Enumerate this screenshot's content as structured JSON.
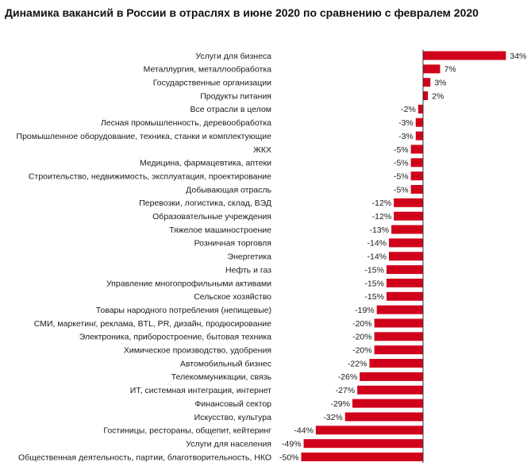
{
  "chart_data": {
    "type": "bar",
    "orientation": "horizontal",
    "title": "Динамика вакансий в России в отраслях в июне 2020 по сравнению с февралем 2020",
    "xlabel": "",
    "ylabel": "",
    "xlim": [
      -50,
      34
    ],
    "grid": false,
    "legend": "none",
    "value_suffix": "%",
    "bar_color": "#d0021b",
    "categories": [
      "Услуги для бизнеса",
      "Металлургия, металлообработка",
      "Государственные организации",
      "Продукты питания",
      "Все отрасли в целом",
      "Лесная промышленность, деревообработка",
      "Промышленное оборудование, техника, станки и комплектующие",
      "ЖКХ",
      "Медицина, фармацевтика, аптеки",
      "Строительство, недвижимость, эксплуатация, проектирование",
      "Добывающая отрасль",
      "Перевозки, логистика, склад, ВЭД",
      "Образовательные учреждения",
      "Тяжелое машиностроение",
      "Розничная торговля",
      "Энергетика",
      "Нефть и газ",
      "Управление многопрофильными активами",
      "Сельское хозяйство",
      "Товары народного потребления (непищевые)",
      "СМИ, маркетинг, реклама, BTL, PR, дизайн, продюсирование",
      "Электроника, приборостроение, бытовая техника",
      "Химическое производство, удобрения",
      "Автомобильный бизнес",
      "Телекоммуникации, связь",
      "ИТ, системная интеграция, интернет",
      "Финансовый сектор",
      "Искусство, культура",
      "Гостиницы, рестораны, общепит, кейтеринг",
      "Услуги для населения",
      "Общественная деятельность, партии, благотворительность, НКО"
    ],
    "values": [
      34,
      7,
      3,
      2,
      -2,
      -3,
      -3,
      -5,
      -5,
      -5,
      -5,
      -12,
      -12,
      -13,
      -14,
      -14,
      -15,
      -15,
      -15,
      -19,
      -20,
      -20,
      -20,
      -22,
      -26,
      -27,
      -29,
      -32,
      -44,
      -49,
      -50
    ],
    "value_labels": [
      "34%",
      "7%",
      "3%",
      "2%",
      "-2%",
      "-3%",
      "-3%",
      "-5%",
      "-5%",
      "-5%",
      "-5%",
      "-12%",
      "-12%",
      "-13%",
      "-14%",
      "-14%",
      "-15%",
      "-15%",
      "-15%",
      "-19%",
      "-20%",
      "-20%",
      "-20%",
      "-22%",
      "-26%",
      "-27%",
      "-29%",
      "-32%",
      "-44%",
      "-49%",
      "-50%"
    ]
  }
}
